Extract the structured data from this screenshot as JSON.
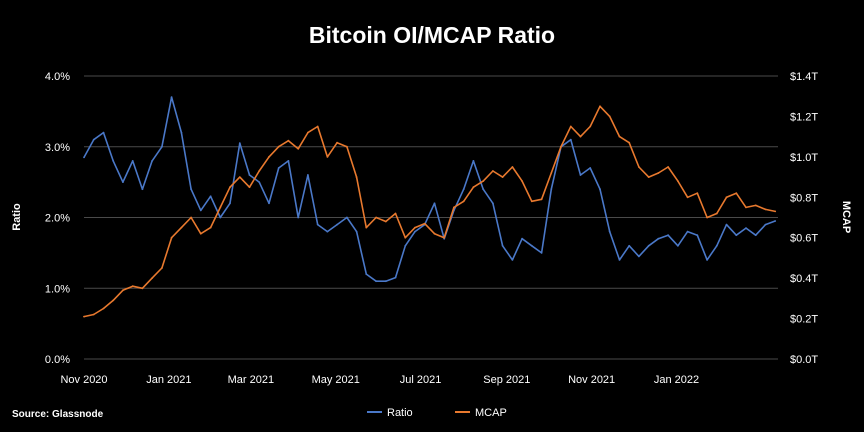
{
  "chart_data": {
    "type": "line",
    "title": "Bitcoin OI/MCAP Ratio",
    "ylabel": "Ratio",
    "y2label": "MCAP",
    "source": "Source: Glassnode",
    "grid": true,
    "legend_placement": "bottom-center",
    "x_ticks": [
      "Nov 2020",
      "Jan 2021",
      "Mar 2021",
      "May 2021",
      "Jul 2021",
      "Sep 2021",
      "Nov 2021",
      "Jan 2022"
    ],
    "x_range": [
      "2020-11-01",
      "2022-03-15"
    ],
    "y_ticks": [
      "0.0%",
      "1.0%",
      "2.0%",
      "3.0%",
      "4.0%"
    ],
    "ylim": [
      0,
      4.0
    ],
    "y2_ticks": [
      "$0.0T",
      "$0.2T",
      "$0.4T",
      "$0.6T",
      "$0.8T",
      "$1.0T",
      "$1.2T",
      "$1.4T"
    ],
    "y2lim": [
      0,
      1.4
    ],
    "series": [
      {
        "name": "Ratio",
        "color": "#4a78c8",
        "axis": "left",
        "unit": "percent",
        "points": [
          [
            "2020-11-01",
            2.85
          ],
          [
            "2020-11-08",
            3.1
          ],
          [
            "2020-11-15",
            3.2
          ],
          [
            "2020-11-22",
            2.8
          ],
          [
            "2020-11-29",
            2.5
          ],
          [
            "2020-12-06",
            2.8
          ],
          [
            "2020-12-13",
            2.4
          ],
          [
            "2020-12-20",
            2.8
          ],
          [
            "2020-12-27",
            3.0
          ],
          [
            "2021-01-03",
            3.7
          ],
          [
            "2021-01-10",
            3.2
          ],
          [
            "2021-01-17",
            2.4
          ],
          [
            "2021-01-24",
            2.1
          ],
          [
            "2021-01-31",
            2.3
          ],
          [
            "2021-02-07",
            2.0
          ],
          [
            "2021-02-14",
            2.2
          ],
          [
            "2021-02-21",
            3.05
          ],
          [
            "2021-02-28",
            2.6
          ],
          [
            "2021-03-07",
            2.5
          ],
          [
            "2021-03-14",
            2.2
          ],
          [
            "2021-03-21",
            2.7
          ],
          [
            "2021-03-28",
            2.8
          ],
          [
            "2021-04-04",
            2.0
          ],
          [
            "2021-04-11",
            2.6
          ],
          [
            "2021-04-18",
            1.9
          ],
          [
            "2021-04-25",
            1.8
          ],
          [
            "2021-05-02",
            1.9
          ],
          [
            "2021-05-09",
            2.0
          ],
          [
            "2021-05-16",
            1.8
          ],
          [
            "2021-05-23",
            1.2
          ],
          [
            "2021-05-30",
            1.1
          ],
          [
            "2021-06-06",
            1.1
          ],
          [
            "2021-06-13",
            1.15
          ],
          [
            "2021-06-20",
            1.6
          ],
          [
            "2021-06-27",
            1.8
          ],
          [
            "2021-07-04",
            1.9
          ],
          [
            "2021-07-11",
            2.2
          ],
          [
            "2021-07-18",
            1.7
          ],
          [
            "2021-07-25",
            2.1
          ],
          [
            "2021-08-01",
            2.4
          ],
          [
            "2021-08-08",
            2.8
          ],
          [
            "2021-08-15",
            2.4
          ],
          [
            "2021-08-22",
            2.2
          ],
          [
            "2021-08-29",
            1.6
          ],
          [
            "2021-09-05",
            1.4
          ],
          [
            "2021-09-12",
            1.7
          ],
          [
            "2021-09-19",
            1.6
          ],
          [
            "2021-09-26",
            1.5
          ],
          [
            "2021-10-03",
            2.4
          ],
          [
            "2021-10-10",
            3.0
          ],
          [
            "2021-10-17",
            3.1
          ],
          [
            "2021-10-24",
            2.6
          ],
          [
            "2021-10-31",
            2.7
          ],
          [
            "2021-11-07",
            2.4
          ],
          [
            "2021-11-14",
            1.8
          ],
          [
            "2021-11-21",
            1.4
          ],
          [
            "2021-11-28",
            1.6
          ],
          [
            "2021-12-05",
            1.45
          ],
          [
            "2021-12-12",
            1.6
          ],
          [
            "2021-12-19",
            1.7
          ],
          [
            "2021-12-26",
            1.75
          ],
          [
            "2022-01-02",
            1.6
          ],
          [
            "2022-01-09",
            1.8
          ],
          [
            "2022-01-16",
            1.75
          ],
          [
            "2022-01-23",
            1.4
          ],
          [
            "2022-01-30",
            1.6
          ],
          [
            "2022-02-06",
            1.9
          ],
          [
            "2022-02-13",
            1.75
          ],
          [
            "2022-02-20",
            1.85
          ],
          [
            "2022-02-27",
            1.75
          ],
          [
            "2022-03-06",
            1.9
          ],
          [
            "2022-03-13",
            1.95
          ]
        ]
      },
      {
        "name": "MCAP",
        "color": "#e8792e",
        "axis": "right",
        "unit": "trillion USD",
        "points": [
          [
            "2020-11-01",
            0.21
          ],
          [
            "2020-11-08",
            0.22
          ],
          [
            "2020-11-15",
            0.25
          ],
          [
            "2020-11-22",
            0.29
          ],
          [
            "2020-11-29",
            0.34
          ],
          [
            "2020-12-06",
            0.36
          ],
          [
            "2020-12-13",
            0.35
          ],
          [
            "2020-12-20",
            0.4
          ],
          [
            "2020-12-27",
            0.45
          ],
          [
            "2021-01-03",
            0.6
          ],
          [
            "2021-01-10",
            0.65
          ],
          [
            "2021-01-17",
            0.7
          ],
          [
            "2021-01-24",
            0.62
          ],
          [
            "2021-01-31",
            0.65
          ],
          [
            "2021-02-07",
            0.75
          ],
          [
            "2021-02-14",
            0.85
          ],
          [
            "2021-02-21",
            0.9
          ],
          [
            "2021-02-28",
            0.85
          ],
          [
            "2021-03-07",
            0.93
          ],
          [
            "2021-03-14",
            1.0
          ],
          [
            "2021-03-21",
            1.05
          ],
          [
            "2021-03-28",
            1.08
          ],
          [
            "2021-04-04",
            1.04
          ],
          [
            "2021-04-11",
            1.12
          ],
          [
            "2021-04-18",
            1.15
          ],
          [
            "2021-04-25",
            1.0
          ],
          [
            "2021-05-02",
            1.07
          ],
          [
            "2021-05-09",
            1.05
          ],
          [
            "2021-05-16",
            0.9
          ],
          [
            "2021-05-23",
            0.65
          ],
          [
            "2021-05-30",
            0.7
          ],
          [
            "2021-06-06",
            0.68
          ],
          [
            "2021-06-13",
            0.72
          ],
          [
            "2021-06-20",
            0.6
          ],
          [
            "2021-06-27",
            0.65
          ],
          [
            "2021-07-04",
            0.67
          ],
          [
            "2021-07-11",
            0.62
          ],
          [
            "2021-07-18",
            0.6
          ],
          [
            "2021-07-25",
            0.75
          ],
          [
            "2021-08-01",
            0.78
          ],
          [
            "2021-08-08",
            0.85
          ],
          [
            "2021-08-15",
            0.88
          ],
          [
            "2021-08-22",
            0.93
          ],
          [
            "2021-08-29",
            0.9
          ],
          [
            "2021-09-05",
            0.95
          ],
          [
            "2021-09-12",
            0.88
          ],
          [
            "2021-09-19",
            0.78
          ],
          [
            "2021-09-26",
            0.79
          ],
          [
            "2021-10-03",
            0.92
          ],
          [
            "2021-10-10",
            1.05
          ],
          [
            "2021-10-17",
            1.15
          ],
          [
            "2021-10-24",
            1.1
          ],
          [
            "2021-10-31",
            1.15
          ],
          [
            "2021-11-07",
            1.25
          ],
          [
            "2021-11-14",
            1.2
          ],
          [
            "2021-11-21",
            1.1
          ],
          [
            "2021-11-28",
            1.07
          ],
          [
            "2021-12-05",
            0.95
          ],
          [
            "2021-12-12",
            0.9
          ],
          [
            "2021-12-19",
            0.92
          ],
          [
            "2021-12-26",
            0.95
          ],
          [
            "2022-01-02",
            0.88
          ],
          [
            "2022-01-09",
            0.8
          ],
          [
            "2022-01-16",
            0.82
          ],
          [
            "2022-01-23",
            0.7
          ],
          [
            "2022-01-30",
            0.72
          ],
          [
            "2022-02-06",
            0.8
          ],
          [
            "2022-02-13",
            0.82
          ],
          [
            "2022-02-20",
            0.75
          ],
          [
            "2022-02-27",
            0.76
          ],
          [
            "2022-03-06",
            0.74
          ],
          [
            "2022-03-13",
            0.73
          ]
        ]
      }
    ]
  }
}
